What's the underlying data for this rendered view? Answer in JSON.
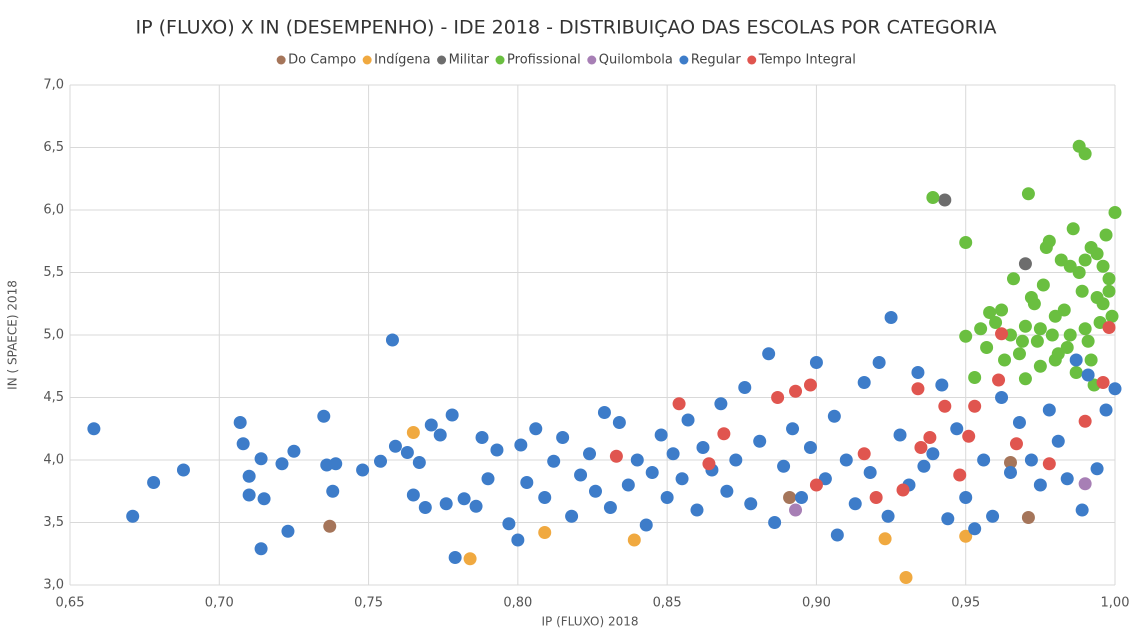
{
  "chart_data": {
    "type": "scatter",
    "title": "IP (FLUXO) X IN (DESEMPENHO) - IDE 2018 - DISTRIBUIÇAO DAS ESCOLAS POR CATEGORIA",
    "x_label": "IP (FLUXO) 2018",
    "y_label": "IN ( SPAECE) 2018",
    "grid": true,
    "legend": "top",
    "xlim": [
      0.65,
      1.0
    ],
    "ylim": [
      3.0,
      7.0
    ],
    "xticks": [
      {
        "value": 0.65,
        "label": "0,65"
      },
      {
        "value": 0.7,
        "label": "0,70"
      },
      {
        "value": 0.75,
        "label": "0,75"
      },
      {
        "value": 0.8,
        "label": "0,80"
      },
      {
        "value": 0.85,
        "label": "0,85"
      },
      {
        "value": 0.9,
        "label": "0,90"
      },
      {
        "value": 0.95,
        "label": "0,95"
      },
      {
        "value": 1.0,
        "label": "1,00"
      }
    ],
    "yticks": [
      {
        "value": 3.0,
        "label": "3,0"
      },
      {
        "value": 3.5,
        "label": "3,5"
      },
      {
        "value": 4.0,
        "label": "4,0"
      },
      {
        "value": 4.5,
        "label": "4,5"
      },
      {
        "value": 5.0,
        "label": "5,0"
      },
      {
        "value": 5.5,
        "label": "5,5"
      },
      {
        "value": 6.0,
        "label": "6,0"
      },
      {
        "value": 6.5,
        "label": "6,5"
      },
      {
        "value": 7.0,
        "label": "7,0"
      }
    ],
    "series": [
      {
        "name": "Do Campo",
        "color": "#a5755a",
        "x": [
          0.737,
          0.891,
          0.971,
          0.965
        ],
        "y": [
          3.47,
          3.7,
          3.54,
          3.98
        ]
      },
      {
        "name": "Indígena",
        "color": "#f0a940",
        "x": [
          0.765,
          0.784,
          0.809,
          0.839,
          0.923,
          0.93,
          0.95
        ],
        "y": [
          4.22,
          3.21,
          3.42,
          3.36,
          3.37,
          3.06,
          3.39
        ]
      },
      {
        "name": "Militar",
        "color": "#6d6d6d",
        "x": [
          0.943,
          0.97
        ],
        "y": [
          6.08,
          5.57
        ]
      },
      {
        "name": "Profissional",
        "color": "#6abf40",
        "x": [
          0.939,
          0.95,
          0.971,
          0.988,
          0.99,
          0.95,
          0.953,
          0.958,
          0.962,
          0.965,
          0.968,
          0.97,
          0.972,
          0.974,
          0.976,
          0.978,
          0.98,
          0.982,
          0.984,
          0.986,
          0.988,
          0.99,
          0.992,
          0.994,
          0.996,
          0.998,
          1.0,
          0.997,
          0.995,
          0.993,
          0.991,
          0.989,
          0.987,
          0.985,
          0.983,
          0.981,
          0.979,
          0.977,
          0.975,
          0.973,
          0.969,
          0.966,
          0.963,
          0.96,
          0.957,
          0.955,
          0.999,
          0.998,
          0.996,
          0.994,
          0.992,
          0.99,
          0.985,
          0.98,
          0.975,
          0.97
        ],
        "y": [
          6.1,
          5.74,
          6.13,
          6.51,
          6.45,
          4.99,
          4.66,
          5.18,
          5.2,
          5.0,
          4.85,
          5.07,
          5.3,
          4.95,
          5.4,
          5.75,
          5.15,
          5.6,
          4.9,
          5.85,
          5.5,
          5.05,
          4.8,
          5.65,
          5.25,
          5.45,
          5.98,
          5.8,
          5.1,
          4.6,
          4.95,
          5.35,
          4.7,
          5.55,
          5.2,
          4.85,
          5.0,
          5.7,
          4.75,
          5.25,
          4.95,
          5.45,
          4.8,
          5.1,
          4.9,
          5.05,
          5.15,
          5.35,
          5.55,
          5.3,
          5.7,
          5.6,
          5.0,
          4.8,
          5.05,
          4.65
        ]
      },
      {
        "name": "Quilombola",
        "color": "#a77fb5",
        "x": [
          0.99,
          0.893
        ],
        "y": [
          3.81,
          3.6
        ]
      },
      {
        "name": "Regular",
        "color": "#3d7cc9",
        "x": [
          0.658,
          0.671,
          0.678,
          0.688,
          0.707,
          0.708,
          0.71,
          0.71,
          0.714,
          0.714,
          0.715,
          0.721,
          0.723,
          0.725,
          0.735,
          0.736,
          0.738,
          0.739,
          0.748,
          0.754,
          0.758,
          0.759,
          0.763,
          0.765,
          0.767,
          0.769,
          0.771,
          0.774,
          0.776,
          0.778,
          0.779,
          0.782,
          0.786,
          0.788,
          0.79,
          0.793,
          0.797,
          0.8,
          0.801,
          0.803,
          0.806,
          0.809,
          0.812,
          0.815,
          0.818,
          0.821,
          0.824,
          0.826,
          0.829,
          0.831,
          0.834,
          0.837,
          0.84,
          0.843,
          0.845,
          0.848,
          0.85,
          0.852,
          0.855,
          0.857,
          0.86,
          0.862,
          0.865,
          0.868,
          0.87,
          0.873,
          0.876,
          0.878,
          0.881,
          0.884,
          0.886,
          0.889,
          0.892,
          0.895,
          0.898,
          0.9,
          0.903,
          0.906,
          0.907,
          0.91,
          0.913,
          0.916,
          0.918,
          0.921,
          0.924,
          0.925,
          0.928,
          0.931,
          0.934,
          0.936,
          0.939,
          0.942,
          0.944,
          0.947,
          0.95,
          0.953,
          0.956,
          0.959,
          0.962,
          0.965,
          0.968,
          0.972,
          0.975,
          0.978,
          0.981,
          0.984,
          0.987,
          0.989,
          0.991,
          0.994,
          0.997,
          1.0
        ],
        "y": [
          4.25,
          3.55,
          3.82,
          3.92,
          4.3,
          4.13,
          3.72,
          3.87,
          3.29,
          4.01,
          3.69,
          3.97,
          3.43,
          4.07,
          4.35,
          3.96,
          3.75,
          3.97,
          3.92,
          3.99,
          4.96,
          4.11,
          4.06,
          3.72,
          3.98,
          3.62,
          4.28,
          4.2,
          3.65,
          4.36,
          3.22,
          3.69,
          3.63,
          4.18,
          3.85,
          4.08,
          3.49,
          3.36,
          4.12,
          3.82,
          4.25,
          3.7,
          3.99,
          4.18,
          3.55,
          3.88,
          4.05,
          3.75,
          4.38,
          3.62,
          4.3,
          3.8,
          4.0,
          3.48,
          3.9,
          4.2,
          3.7,
          4.05,
          3.85,
          4.32,
          3.6,
          4.1,
          3.92,
          4.45,
          3.75,
          4.0,
          4.58,
          3.65,
          4.15,
          4.85,
          3.5,
          3.95,
          4.25,
          3.7,
          4.1,
          4.78,
          3.85,
          4.35,
          3.4,
          4.0,
          3.65,
          4.62,
          3.9,
          4.78,
          3.55,
          5.14,
          4.2,
          3.8,
          4.7,
          3.95,
          4.05,
          4.6,
          3.53,
          4.25,
          3.7,
          3.45,
          4.0,
          3.55,
          4.5,
          3.9,
          4.3,
          4.0,
          3.8,
          4.4,
          4.15,
          3.85,
          4.8,
          3.6,
          4.68,
          3.93,
          4.4,
          4.57
        ]
      },
      {
        "name": "Tempo Integral",
        "color": "#e0554f",
        "x": [
          0.833,
          0.854,
          0.864,
          0.869,
          0.887,
          0.893,
          0.898,
          0.9,
          0.916,
          0.92,
          0.929,
          0.934,
          0.935,
          0.938,
          0.943,
          0.948,
          0.951,
          0.953,
          0.961,
          0.962,
          0.967,
          0.978,
          0.99,
          0.996,
          0.998
        ],
        "y": [
          4.03,
          4.45,
          3.97,
          4.21,
          4.5,
          4.55,
          4.6,
          3.8,
          4.05,
          3.7,
          3.76,
          4.57,
          4.1,
          4.18,
          4.43,
          3.88,
          4.19,
          4.43,
          4.64,
          5.01,
          4.13,
          3.97,
          4.31,
          4.62,
          5.06
        ]
      }
    ]
  }
}
